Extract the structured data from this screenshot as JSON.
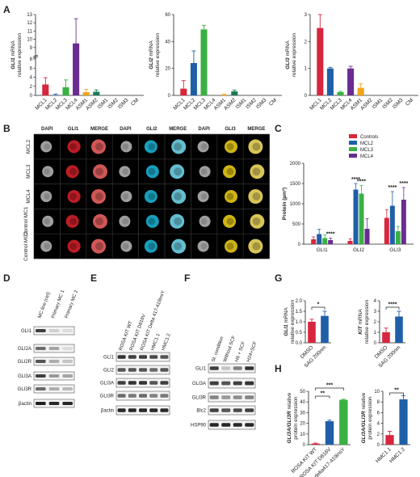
{
  "panel_labels": {
    "A": "A",
    "B": "B",
    "C": "C",
    "D": "D",
    "E": "E",
    "F": "F",
    "G": "G",
    "H": "H"
  },
  "panel_A": {
    "categories": [
      "MCL1",
      "MCL2",
      "MCL3",
      "MCL4",
      "ASM1",
      "ASM2",
      "ISM1",
      "ISM2",
      "ISM3",
      "CM"
    ],
    "colors": [
      "#d7263d",
      "#1f5fa8",
      "#3bb143",
      "#6a2c91",
      "#f3a31a",
      "#1b7a5a",
      "#999999",
      "#999999",
      "#999999",
      "#999999"
    ],
    "charts": [
      {
        "ylabel_gene": "GLI1",
        "ylabel_rest": " mRNA",
        "ylabel2": "relative expression",
        "ylim": [
          0,
          13
        ],
        "axis_break": true,
        "ticks": [
          "0",
          "2",
          "4",
          "6",
          "8",
          "9",
          "10",
          "11",
          "12",
          "13"
        ],
        "values": [
          2.4,
          0.1,
          1.8,
          9.5,
          0.7,
          0.8,
          0,
          0,
          0,
          0
        ],
        "errors": [
          1.5,
          0.2,
          1.6,
          3.0,
          0.6,
          0.4,
          0,
          0,
          0,
          0
        ]
      },
      {
        "ylabel_gene": "GLI2",
        "ylabel_rest": " mRNA",
        "ylabel2": "relative expression",
        "ylim": [
          0,
          60
        ],
        "axis_break": false,
        "ticks": [
          "0",
          "20",
          "40",
          "60"
        ],
        "values": [
          5,
          24,
          49,
          0,
          0.5,
          3,
          0,
          0,
          0,
          0
        ],
        "errors": [
          6,
          9,
          3,
          0,
          0.5,
          1,
          0,
          0,
          0,
          0
        ]
      },
      {
        "ylabel_gene": "GLI3",
        "ylabel_rest": " mRNA",
        "ylabel2": "relative expression",
        "ylim": [
          0,
          3
        ],
        "axis_break": false,
        "ticks": [
          "0",
          "1",
          "2",
          "3"
        ],
        "values": [
          2.5,
          1.0,
          0.12,
          1.0,
          0.28,
          0,
          0,
          0,
          0,
          0
        ],
        "errors": [
          0.5,
          0.04,
          0.03,
          0.08,
          0.15,
          0,
          0,
          0,
          0,
          0
        ]
      }
    ]
  },
  "panel_B": {
    "col_headers": [
      "DAPI",
      "GLI1",
      "MERGE",
      "DAPI",
      "GLI2",
      "MERGE",
      "DAPI",
      "GLI3",
      "MERGE"
    ],
    "col_colors": [
      "#999999",
      "#d7263d",
      "#222222",
      "#999999",
      "#1ba1c9",
      "#222222",
      "#999999",
      "#e2c41c",
      "#222222"
    ],
    "row_labels": [
      "MCL2",
      "MCL3",
      "MCL4",
      "Control MC1",
      "Control MC2"
    ]
  },
  "panel_C": {
    "ylabel": "Protein (µm²)",
    "ticks": [
      "0",
      "500",
      "1000",
      "1500",
      "2000"
    ],
    "ylim": [
      0,
      2000
    ],
    "categories": [
      "GLI1",
      "GLI2",
      "GLI3"
    ],
    "legend": [
      {
        "name": "Controls",
        "color": "#d7263d"
      },
      {
        "name": "MCL2",
        "color": "#1f5fa8"
      },
      {
        "name": "MCL3",
        "color": "#3bb143"
      },
      {
        "name": "MCL4",
        "color": "#6a2c91"
      }
    ],
    "series_values": [
      [
        120,
        80,
        650
      ],
      [
        250,
        1350,
        950
      ],
      [
        150,
        1250,
        320
      ],
      [
        100,
        380,
        1100
      ]
    ],
    "series_errors": [
      [
        60,
        50,
        200
      ],
      [
        120,
        150,
        350
      ],
      [
        80,
        200,
        120
      ],
      [
        50,
        250,
        300
      ]
    ],
    "sig": [
      {
        "group": 0,
        "series": 3,
        "label": "****"
      },
      {
        "group": 1,
        "series": 1,
        "label": "****"
      },
      {
        "group": 1,
        "series": 2,
        "label": "****"
      },
      {
        "group": 2,
        "series": 1,
        "label": "****"
      },
      {
        "group": 2,
        "series": 3,
        "label": "****"
      }
    ]
  },
  "panel_D": {
    "lanes": [
      "MC line (ctrl)",
      "Primary MC 1",
      "Primary MC 2"
    ],
    "bands": [
      "GLI1",
      "GLI2A",
      "GLI2R",
      "GLI3A",
      "GLI3R",
      "βactin"
    ]
  },
  "panel_E": {
    "lanes": [
      "ROSA KIT WT",
      "ROSA KIT D816V",
      "ROSA KIT Delta 417-419insY",
      "HMC1.1",
      "HMC1.2"
    ],
    "bands": [
      "GLI1",
      "GLI2",
      "GLI3A",
      "GLI3R",
      "βactin"
    ]
  },
  "panel_F": {
    "lanes": [
      "St. condition",
      "Without SCF",
      "H6 + SCF",
      "H24+SCF"
    ],
    "bands": [
      "GLI1",
      "GLI3A",
      "GLI3R",
      "Blc2",
      "HSP90"
    ]
  },
  "panel_G": {
    "charts": [
      {
        "ylabel_gene": "GLI1",
        "ylabel_rest": " mRNA",
        "ylabel2": "relative expression",
        "ticks": [
          "0.0",
          "0.5",
          "1.0",
          "1.5",
          "2.0"
        ],
        "ylim": [
          0,
          2
        ],
        "categories": [
          "DMSO",
          "SAG 200nm"
        ],
        "colors": [
          "#d7263d",
          "#1f5fa8"
        ],
        "values": [
          1.0,
          1.28
        ],
        "errors": [
          0.12,
          0.22
        ],
        "sig": "*"
      },
      {
        "ylabel_gene": "KIT",
        "ylabel_rest": " mRNA",
        "ylabel2": "relative expression",
        "ticks": [
          "0",
          "1",
          "2",
          "3",
          "4"
        ],
        "ylim": [
          0,
          4
        ],
        "categories": [
          "DMSO",
          "SAG 200nm"
        ],
        "colors": [
          "#d7263d",
          "#1f5fa8"
        ],
        "values": [
          1.0,
          2.5
        ],
        "errors": [
          0.4,
          0.5
        ],
        "sig": "****"
      }
    ]
  },
  "panel_H": {
    "charts": [
      {
        "ylabel_gene": "GLI3A/GLI3R",
        "ylabel_rest": " relative",
        "ylabel2": "protein expression",
        "ticks": [
          "0",
          "10",
          "20",
          "30",
          "40",
          "50"
        ],
        "ylim": [
          0,
          50
        ],
        "categories": [
          "ROSA KIT WT",
          "ROSA KIT D816V",
          "ROSA KIT delta417-419insY"
        ],
        "colors": [
          "#d7263d",
          "#1f5fa8",
          "#3bb143"
        ],
        "values": [
          1,
          22,
          42
        ],
        "errors": [
          0.5,
          1,
          0.5
        ],
        "sig": [
          {
            "from": 0,
            "to": 1,
            "label": "**"
          },
          {
            "from": 0,
            "to": 2,
            "label": "***"
          }
        ]
      },
      {
        "ylabel_gene": "GLI3A/GLI3R",
        "ylabel_rest": " relative",
        "ylabel2": "protein expression",
        "ticks": [
          "0",
          "2",
          "4",
          "6",
          "8",
          "10"
        ],
        "ylim": [
          0,
          10
        ],
        "categories": [
          "HMC1.1",
          "HMC1.2"
        ],
        "colors": [
          "#d7263d",
          "#1f5fa8"
        ],
        "values": [
          1.8,
          8.5
        ],
        "errors": [
          0.7,
          0.7
        ],
        "sig": [
          {
            "from": 0,
            "to": 1,
            "label": "**"
          }
        ]
      }
    ]
  }
}
